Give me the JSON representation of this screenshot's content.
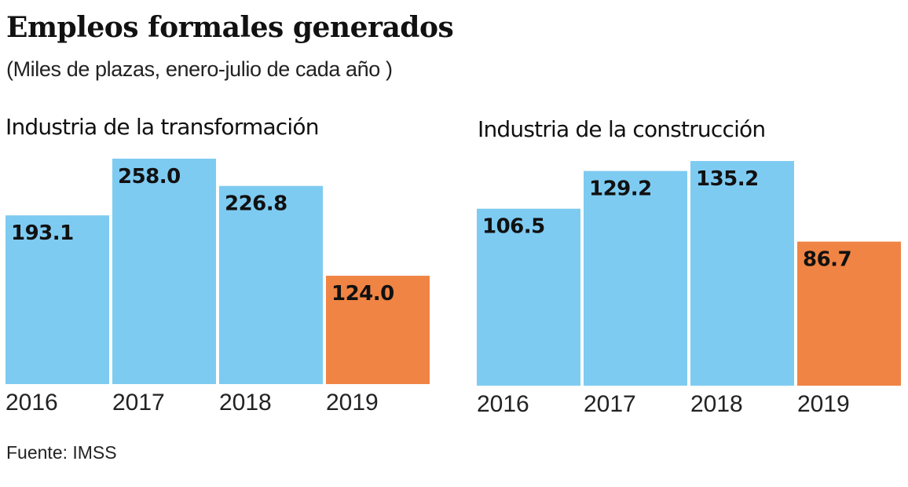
{
  "header": {
    "title": "Empleos formales generados",
    "subtitle": "(Miles de plazas, enero-julio de cada año )"
  },
  "colors": {
    "past": "#7ecbf2",
    "current": "#f08444"
  },
  "chart_data": [
    {
      "type": "bar",
      "title": "Industria de la transformación",
      "categories": [
        "2016",
        "2017",
        "2018",
        "2019"
      ],
      "values": [
        193.1,
        258.0,
        226.8,
        124.0
      ],
      "labels": [
        "193.1",
        "258.0",
        "226.8",
        "124.0"
      ],
      "highlight": [
        false,
        false,
        false,
        true
      ],
      "xlabel": "",
      "ylabel": "Miles de plazas",
      "ylim": [
        0,
        258.0
      ],
      "grid": false,
      "legend": "none"
    },
    {
      "type": "bar",
      "title": "Industria de la construcción",
      "categories": [
        "2016",
        "2017",
        "2018",
        "2019"
      ],
      "values": [
        106.5,
        129.2,
        135.2,
        86.7
      ],
      "labels": [
        "106.5",
        "129.2",
        "135.2",
        "86.7"
      ],
      "highlight": [
        false,
        false,
        false,
        true
      ],
      "xlabel": "",
      "ylabel": "Miles de plazas",
      "ylim": [
        0,
        135.2
      ],
      "grid": false,
      "legend": "none"
    }
  ],
  "footer": {
    "source": "Fuente: IMSS"
  }
}
